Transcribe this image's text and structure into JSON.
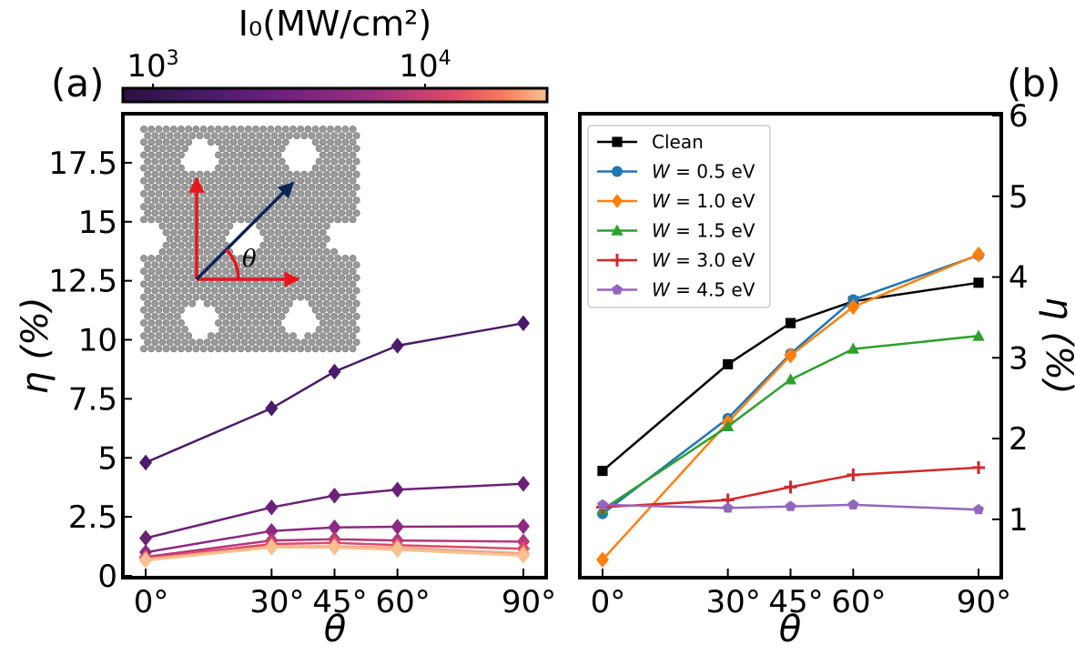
{
  "colorbar": {
    "label": "I₀(MW/cm²)",
    "ticks": [
      {
        "base": "10",
        "exp": "3",
        "value": 1000
      },
      {
        "base": "10",
        "exp": "4",
        "value": 10000
      }
    ],
    "range": [
      700,
      28000
    ],
    "colormap": "magma"
  },
  "panel_labels": {
    "a": "(a)",
    "b": "(b)"
  },
  "inset": {
    "angle_symbol": "θ"
  },
  "chart_data": [
    {
      "type": "line",
      "panel": "(a)",
      "xlabel": "θ",
      "ylabel": "η (%)",
      "x": [
        0,
        30,
        45,
        60,
        90
      ],
      "xticklabels": [
        "0°",
        "30°",
        "45°",
        "60°",
        "90°"
      ],
      "xlim": [
        -5,
        95
      ],
      "ylim": [
        0,
        19.5
      ],
      "yticks": [
        0,
        2.5,
        5,
        7.5,
        10,
        12.5,
        15,
        17.5
      ],
      "yticklabels": [
        "0",
        "2.5",
        "5",
        "7.5",
        "10",
        "12.5",
        "15",
        "17.5"
      ],
      "marker": "diamond",
      "series": [
        {
          "color": "#4a1a6b",
          "values": [
            4.8,
            7.1,
            8.65,
            9.75,
            10.7
          ]
        },
        {
          "color": "#6b2178",
          "values": [
            1.6,
            2.9,
            3.4,
            3.65,
            3.9
          ]
        },
        {
          "color": "#8c2981",
          "values": [
            1.0,
            1.9,
            2.05,
            2.08,
            2.1
          ]
        },
        {
          "color": "#b5367a",
          "values": [
            0.8,
            1.5,
            1.55,
            1.5,
            1.45
          ]
        },
        {
          "color": "#de4968",
          "values": [
            0.75,
            1.35,
            1.4,
            1.3,
            1.15
          ]
        },
        {
          "color": "#f4a582",
          "values": [
            0.7,
            1.25,
            1.25,
            1.2,
            0.95
          ]
        },
        {
          "color": "#f9c18f",
          "values": [
            0.65,
            1.2,
            1.2,
            1.1,
            0.85
          ]
        }
      ]
    },
    {
      "type": "line",
      "panel": "(b)",
      "xlabel": "θ",
      "ylabel": "η (%)",
      "x": [
        0,
        30,
        45,
        60,
        90
      ],
      "xticklabels": [
        "0°",
        "30°",
        "45°",
        "60°",
        "90°"
      ],
      "xlim": [
        -5,
        95
      ],
      "ylim": [
        0.3,
        6.0
      ],
      "yticks": [
        1,
        2,
        3,
        4,
        5,
        6
      ],
      "yticklabels": [
        "1",
        "2",
        "3",
        "4",
        "5",
        "6"
      ],
      "legend": "top-left",
      "series": [
        {
          "name": "Clean",
          "var": "",
          "num": "",
          "unit": "",
          "color": "#000000",
          "marker": "square",
          "values": [
            1.6,
            2.92,
            3.43,
            3.7,
            3.93
          ]
        },
        {
          "name": "W = 0.5 eV",
          "var": "W",
          "num": "0.5",
          "unit": "eV",
          "color": "#1f77b4",
          "marker": "circle",
          "values": [
            1.07,
            2.25,
            3.05,
            3.72,
            4.27
          ]
        },
        {
          "name": "W = 1.0 eV",
          "var": "W",
          "num": "1.0",
          "unit": "eV",
          "color": "#ff7f0e",
          "marker": "diamond",
          "values": [
            0.5,
            2.2,
            3.03,
            3.63,
            4.28
          ]
        },
        {
          "name": "W = 1.5 eV",
          "var": "W",
          "num": "1.5",
          "unit": "eV",
          "color": "#2ca02c",
          "marker": "triangle",
          "values": [
            1.12,
            2.15,
            2.73,
            3.11,
            3.27
          ]
        },
        {
          "name": "W = 3.0 eV",
          "var": "W",
          "num": "3.0",
          "unit": "eV",
          "color": "#d62728",
          "marker": "plus",
          "values": [
            1.15,
            1.24,
            1.4,
            1.55,
            1.64
          ]
        },
        {
          "name": "W = 4.5 eV",
          "var": "W",
          "num": "4.5",
          "unit": "eV",
          "color": "#9467bd",
          "marker": "pentagon",
          "values": [
            1.18,
            1.14,
            1.16,
            1.18,
            1.12
          ]
        }
      ]
    }
  ]
}
